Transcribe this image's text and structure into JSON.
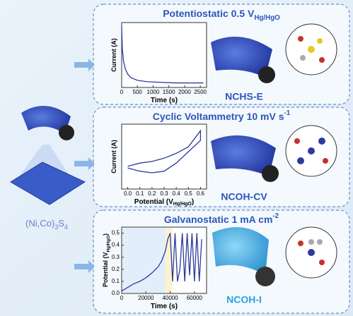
{
  "chart_data": [
    {
      "type": "line",
      "title": [
        "Potentiostatic 0.5 V",
        {
          "sub": "Hg/HgO"
        }
      ],
      "x_label": [
        "Time (s)"
      ],
      "y_label": [
        "Current (A)"
      ],
      "x": [
        0,
        20,
        60,
        120,
        200,
        300,
        500,
        800,
        1200,
        1700,
        2200,
        2600
      ],
      "series": [
        {
          "color": "#2b3a9e",
          "values": [
            0.95,
            0.6,
            0.4,
            0.28,
            0.2,
            0.15,
            0.11,
            0.09,
            0.08,
            0.07,
            0.07,
            0.07
          ]
        }
      ],
      "xlim": [
        0,
        2700
      ],
      "ylim": [
        0,
        1
      ],
      "xticks": [
        0,
        500,
        1000,
        1500,
        2000,
        2500
      ]
    },
    {
      "type": "line",
      "title": [
        "Cyclic Voltammetry 10 mV s",
        {
          "sup": "-1"
        }
      ],
      "x_label": [
        "Potential (V",
        {
          "sub": "Hg/HgO"
        },
        ")"
      ],
      "y_label": [
        "Current (A)"
      ],
      "x": [
        0,
        0.1,
        0.2,
        0.3,
        0.4,
        0.5,
        0.6,
        0.6,
        0.5,
        0.4,
        0.3,
        0.2,
        0.1,
        0
      ],
      "series": [
        {
          "color": "#2b3a9e",
          "values": [
            -0.3,
            -0.2,
            -0.15,
            -0.05,
            0.1,
            0.3,
            0.8,
            0.5,
            0.15,
            -0.2,
            -0.45,
            -0.5,
            -0.45,
            -0.35
          ]
        }
      ],
      "xlim": [
        -0.05,
        0.65
      ],
      "ylim": [
        -1,
        1
      ],
      "xticks": [
        {
          "value": 0,
          "label": "0.0"
        },
        0.1,
        0.2,
        0.3,
        0.4,
        0.5,
        0.6
      ]
    },
    {
      "type": "line",
      "title": [
        "Galvanostatic 1 mA cm",
        {
          "sup": "-2"
        }
      ],
      "x_label": [
        "Time (s)"
      ],
      "y_label": [
        "Potential (V",
        {
          "sub": "Hg/HgO"
        },
        ")"
      ],
      "x": [
        0,
        5000,
        10000,
        15000,
        20000,
        25000,
        30000,
        33000,
        36000,
        38000,
        40000,
        42000,
        44000,
        46000,
        48000,
        50000,
        52000,
        54000,
        56000,
        58000,
        60000,
        62000,
        64000,
        66000
      ],
      "series": [
        {
          "color": "#2b3a9e",
          "values": [
            0.02,
            0.05,
            0.08,
            0.1,
            0.13,
            0.17,
            0.22,
            0.27,
            0.35,
            0.45,
            0.5,
            0.1,
            0.5,
            0.1,
            0.2,
            0.5,
            0.1,
            0.5,
            0.15,
            0.5,
            0.1,
            0.5,
            0.1,
            0.45
          ]
        }
      ],
      "xlim": [
        0,
        70000
      ],
      "ylim": [
        0,
        0.55
      ],
      "xticks": [
        0,
        20000,
        40000,
        60000
      ],
      "yticks": [
        {
          "value": 0,
          "label": "0.0"
        },
        0.1,
        0.2,
        0.3,
        0.4,
        0.5
      ]
    }
  ],
  "material": [
    "(Ni,Co)",
    {
      "sub": "3"
    },
    "S",
    {
      "sub": "4"
    }
  ],
  "products": [
    "NCHS-E",
    "NCOH-CV",
    "NCOH-I"
  ]
}
